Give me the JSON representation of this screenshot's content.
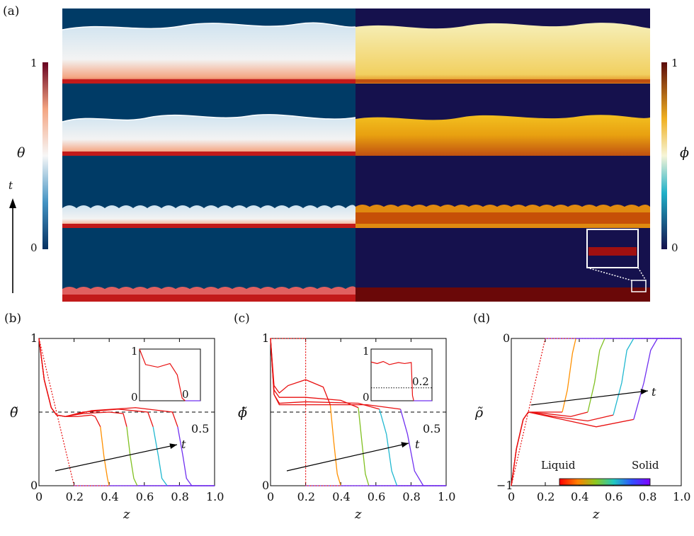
{
  "panel_a": {
    "label": "(a)",
    "left_colorbar": {
      "top": "1",
      "bottom": "0",
      "symbol": "θ"
    },
    "right_colorbar": {
      "top": "1",
      "bottom": "0",
      "symbol": "ϕ"
    },
    "time_axis": "t",
    "colors": {
      "theta_bg": "#003b66",
      "phi_bg": "#15114d",
      "hot": "#c21a1a",
      "phi_fill": "#f0c020"
    }
  },
  "chart_data": [
    {
      "id": "b",
      "type": "line",
      "panel_label": "(b)",
      "ylabel": "θ̃",
      "xlabel": "z",
      "xlim": [
        0,
        1
      ],
      "ylim": [
        0,
        1
      ],
      "x_ticks": [
        "0",
        "0.2",
        "0.4",
        "0.6",
        "0.8",
        "1.0"
      ],
      "y_ticks": [
        "0",
        "1"
      ],
      "reference_line": {
        "y": 0.5,
        "label": "0.5"
      },
      "time_arrow_label": "t",
      "initial_profile": [
        [
          0,
          1
        ],
        [
          0.2,
          0
        ],
        [
          1.0,
          0
        ]
      ],
      "series": [
        {
          "values": [
            [
              0,
              1
            ],
            [
              0.03,
              0.72
            ],
            [
              0.07,
              0.53
            ],
            [
              0.1,
              0.48
            ],
            [
              0.15,
              0.47
            ],
            [
              0.22,
              0.47
            ],
            [
              0.3,
              0.48
            ],
            [
              0.32,
              0.47
            ],
            [
              0.35,
              0.4
            ],
            [
              0.37,
              0.2
            ],
            [
              0.39,
              0.05
            ],
            [
              0.4,
              0
            ],
            [
              1.0,
              0
            ]
          ]
        },
        {
          "values": [
            [
              0,
              1
            ],
            [
              0.03,
              0.72
            ],
            [
              0.07,
              0.53
            ],
            [
              0.1,
              0.48
            ],
            [
              0.15,
              0.47
            ],
            [
              0.25,
              0.49
            ],
            [
              0.4,
              0.5
            ],
            [
              0.48,
              0.49
            ],
            [
              0.5,
              0.4
            ],
            [
              0.52,
              0.2
            ],
            [
              0.54,
              0.05
            ],
            [
              0.56,
              0
            ],
            [
              1.0,
              0
            ]
          ]
        },
        {
          "values": [
            [
              0,
              1
            ],
            [
              0.03,
              0.72
            ],
            [
              0.07,
              0.53
            ],
            [
              0.1,
              0.48
            ],
            [
              0.15,
              0.47
            ],
            [
              0.25,
              0.5
            ],
            [
              0.45,
              0.52
            ],
            [
              0.62,
              0.5
            ],
            [
              0.65,
              0.4
            ],
            [
              0.68,
              0.2
            ],
            [
              0.7,
              0.05
            ],
            [
              0.73,
              0
            ],
            [
              1.0,
              0
            ]
          ]
        },
        {
          "values": [
            [
              0,
              1
            ],
            [
              0.03,
              0.72
            ],
            [
              0.07,
              0.53
            ],
            [
              0.1,
              0.48
            ],
            [
              0.15,
              0.47
            ],
            [
              0.3,
              0.51
            ],
            [
              0.55,
              0.53
            ],
            [
              0.76,
              0.5
            ],
            [
              0.79,
              0.4
            ],
            [
              0.82,
              0.2
            ],
            [
              0.84,
              0.05
            ],
            [
              0.87,
              0
            ],
            [
              1.0,
              0
            ]
          ]
        }
      ],
      "inset": {
        "y_ticks": [
          "0",
          "1"
        ],
        "reference_label": "0",
        "values": [
          [
            0,
            1
          ],
          [
            0.1,
            0.7
          ],
          [
            0.3,
            0.65
          ],
          [
            0.5,
            0.72
          ],
          [
            0.62,
            0.5
          ],
          [
            0.7,
            0.05
          ],
          [
            0.75,
            0
          ],
          [
            1.0,
            0
          ]
        ]
      }
    },
    {
      "id": "c",
      "type": "line",
      "panel_label": "(c)",
      "ylabel": "ϕ̃",
      "xlabel": "z",
      "xlim": [
        0,
        1
      ],
      "ylim": [
        0,
        1
      ],
      "x_ticks": [
        "0",
        "0.2",
        "0.4",
        "0.6",
        "0.8",
        "1.0"
      ],
      "y_ticks": [
        "0",
        "1"
      ],
      "reference_line": {
        "y": 0.5,
        "label": "0.5"
      },
      "time_arrow_label": "t",
      "initial_profile": [
        [
          0,
          1
        ],
        [
          0.2,
          1
        ],
        [
          0.2,
          0
        ],
        [
          1.0,
          0
        ]
      ],
      "series": [
        {
          "values": [
            [
              0,
              1
            ],
            [
              0.02,
              0.68
            ],
            [
              0.05,
              0.63
            ],
            [
              0.1,
              0.68
            ],
            [
              0.2,
              0.72
            ],
            [
              0.3,
              0.67
            ],
            [
              0.34,
              0.55
            ],
            [
              0.36,
              0.3
            ],
            [
              0.38,
              0.08
            ],
            [
              0.4,
              0
            ],
            [
              1.0,
              0
            ]
          ]
        },
        {
          "values": [
            [
              0,
              1
            ],
            [
              0.02,
              0.65
            ],
            [
              0.05,
              0.6
            ],
            [
              0.2,
              0.6
            ],
            [
              0.4,
              0.58
            ],
            [
              0.5,
              0.53
            ],
            [
              0.52,
              0.3
            ],
            [
              0.54,
              0.08
            ],
            [
              0.56,
              0
            ],
            [
              1.0,
              0
            ]
          ]
        },
        {
          "values": [
            [
              0,
              1
            ],
            [
              0.02,
              0.62
            ],
            [
              0.05,
              0.56
            ],
            [
              0.2,
              0.57
            ],
            [
              0.5,
              0.56
            ],
            [
              0.62,
              0.52
            ],
            [
              0.66,
              0.35
            ],
            [
              0.69,
              0.1
            ],
            [
              0.72,
              0
            ],
            [
              1.0,
              0
            ]
          ]
        },
        {
          "values": [
            [
              0,
              1
            ],
            [
              0.02,
              0.62
            ],
            [
              0.05,
              0.55
            ],
            [
              0.2,
              0.55
            ],
            [
              0.55,
              0.55
            ],
            [
              0.74,
              0.52
            ],
            [
              0.78,
              0.35
            ],
            [
              0.82,
              0.1
            ],
            [
              0.87,
              0
            ],
            [
              1.0,
              0
            ]
          ]
        }
      ],
      "inset": {
        "y_ticks": [
          "0",
          "1"
        ],
        "reference_label": "0.2",
        "values": [
          [
            0,
            0.75
          ],
          [
            0.1,
            0.72
          ],
          [
            0.2,
            0.76
          ],
          [
            0.3,
            0.7
          ],
          [
            0.45,
            0.74
          ],
          [
            0.55,
            0.72
          ],
          [
            0.66,
            0.74
          ],
          [
            0.68,
            0.1
          ],
          [
            0.7,
            0
          ],
          [
            1.0,
            0
          ]
        ]
      }
    },
    {
      "id": "d",
      "type": "line",
      "panel_label": "(d)",
      "ylabel": "ρ̃",
      "xlabel": "z",
      "xlim": [
        0,
        1
      ],
      "ylim": [
        -1,
        0
      ],
      "x_ticks": [
        "0",
        "0.2",
        "0.4",
        "0.6",
        "0.8",
        "1.0"
      ],
      "y_ticks": [
        "−1",
        "0"
      ],
      "time_arrow_label": "t",
      "colorbar": {
        "left": "Liquid",
        "right": "Solid"
      },
      "initial_profile": [
        [
          0,
          -1
        ],
        [
          0.2,
          0
        ],
        [
          1.0,
          0
        ]
      ],
      "series": [
        {
          "values": [
            [
              0,
              -1
            ],
            [
              0.03,
              -0.75
            ],
            [
              0.07,
              -0.55
            ],
            [
              0.1,
              -0.5
            ],
            [
              0.15,
              -0.5
            ],
            [
              0.22,
              -0.5
            ],
            [
              0.3,
              -0.5
            ],
            [
              0.33,
              -0.35
            ],
            [
              0.36,
              -0.1
            ],
            [
              0.38,
              0
            ],
            [
              1.0,
              0
            ]
          ]
        },
        {
          "values": [
            [
              0,
              -1
            ],
            [
              0.03,
              -0.75
            ],
            [
              0.07,
              -0.55
            ],
            [
              0.1,
              -0.5
            ],
            [
              0.2,
              -0.51
            ],
            [
              0.35,
              -0.53
            ],
            [
              0.45,
              -0.5
            ],
            [
              0.49,
              -0.3
            ],
            [
              0.52,
              -0.08
            ],
            [
              0.55,
              0
            ],
            [
              1.0,
              0
            ]
          ]
        },
        {
          "values": [
            [
              0,
              -1
            ],
            [
              0.03,
              -0.75
            ],
            [
              0.07,
              -0.55
            ],
            [
              0.1,
              -0.5
            ],
            [
              0.25,
              -0.53
            ],
            [
              0.45,
              -0.56
            ],
            [
              0.6,
              -0.52
            ],
            [
              0.65,
              -0.3
            ],
            [
              0.68,
              -0.08
            ],
            [
              0.72,
              0
            ],
            [
              1.0,
              0
            ]
          ]
        },
        {
          "values": [
            [
              0,
              -1
            ],
            [
              0.03,
              -0.75
            ],
            [
              0.07,
              -0.55
            ],
            [
              0.1,
              -0.5
            ],
            [
              0.3,
              -0.55
            ],
            [
              0.5,
              -0.6
            ],
            [
              0.72,
              -0.55
            ],
            [
              0.78,
              -0.3
            ],
            [
              0.82,
              -0.08
            ],
            [
              0.86,
              0
            ],
            [
              1.0,
              0
            ]
          ]
        }
      ]
    }
  ]
}
